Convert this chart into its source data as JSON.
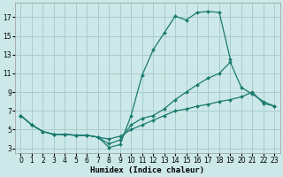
{
  "xlabel": "Humidex (Indice chaleur)",
  "background_color": "#cce8e8",
  "grid_color": "#aacccc",
  "line_color": "#1a7a6e",
  "xlim": [
    -0.5,
    23.5
  ],
  "ylim": [
    2.5,
    18.5
  ],
  "yticks": [
    3,
    5,
    7,
    9,
    11,
    13,
    15,
    17
  ],
  "xticks": [
    0,
    1,
    2,
    3,
    4,
    5,
    6,
    7,
    8,
    9,
    10,
    11,
    12,
    13,
    14,
    15,
    16,
    17,
    18,
    19,
    20,
    21,
    22,
    23
  ],
  "series": [
    {
      "x": [
        0,
        1,
        2,
        3,
        4,
        5,
        6,
        7,
        8,
        9,
        10,
        11,
        12,
        13,
        14,
        15,
        16,
        17,
        18,
        19,
        20,
        21,
        22,
        23
      ],
      "y": [
        6.5,
        5.5,
        4.8,
        4.5,
        4.5,
        4.4,
        4.4,
        4.2,
        3.1,
        3.4,
        6.5,
        10.8,
        13.5,
        15.3,
        17.1,
        16.7,
        17.5,
        17.6,
        17.5,
        12.5,
        null,
        null,
        null,
        null
      ]
    },
    {
      "x": [
        0,
        1,
        2,
        3,
        4,
        5,
        6,
        7,
        8,
        9,
        10,
        11,
        12,
        13,
        14,
        15,
        16,
        17,
        18,
        19,
        20,
        21,
        22,
        23
      ],
      "y": [
        6.5,
        5.5,
        4.8,
        4.5,
        4.5,
        4.4,
        4.4,
        4.2,
        3.5,
        3.9,
        5.5,
        6.2,
        6.5,
        7.2,
        8.2,
        9.0,
        9.8,
        10.5,
        11.0,
        12.2,
        9.5,
        8.8,
        8.0,
        7.5
      ]
    },
    {
      "x": [
        0,
        1,
        2,
        3,
        4,
        5,
        6,
        7,
        8,
        9,
        10,
        11,
        12,
        13,
        14,
        15,
        16,
        17,
        18,
        19,
        20,
        21,
        22,
        23
      ],
      "y": [
        6.5,
        5.5,
        4.8,
        4.5,
        4.5,
        4.4,
        4.4,
        4.2,
        4.0,
        4.3,
        5.0,
        5.5,
        6.0,
        6.5,
        7.0,
        7.2,
        7.5,
        7.7,
        8.0,
        8.2,
        8.5,
        9.0,
        7.8,
        7.5
      ]
    }
  ]
}
